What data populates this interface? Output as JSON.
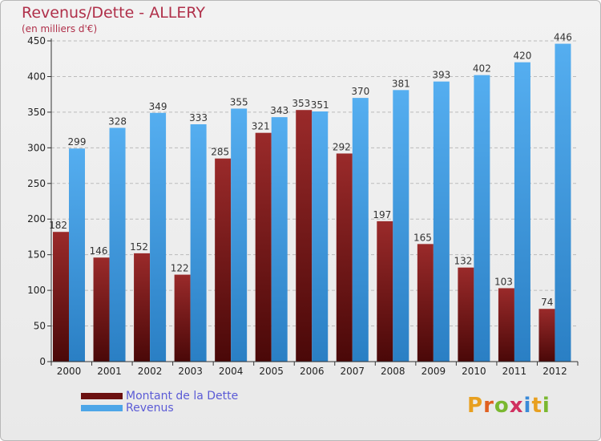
{
  "header": {
    "title": "Revenus/Dette - ALLERY",
    "subtitle": "(en milliers d'€)"
  },
  "colors": {
    "dette": "#7a1a1a",
    "revenus": "#4da6e8",
    "grid": "#bbbbbb",
    "axis": "#333333",
    "title": "#b0304a",
    "legend_text": "#5b5bd6"
  },
  "chart_data": {
    "type": "bar",
    "title": "Revenus/Dette - ALLERY",
    "ylabel": "(en milliers d'€)",
    "xlabel": "",
    "ylim": [
      0,
      450
    ],
    "yticks": [
      0,
      50,
      100,
      150,
      200,
      250,
      300,
      350,
      400,
      450
    ],
    "grid": true,
    "categories": [
      "2000",
      "2001",
      "2002",
      "2003",
      "2004",
      "2005",
      "2006",
      "2007",
      "2008",
      "2009",
      "2010",
      "2011",
      "2012"
    ],
    "series": [
      {
        "name": "Montant de la Dette",
        "color": "#7a1a1a",
        "values": [
          182,
          146,
          152,
          122,
          285,
          321,
          353,
          292,
          197,
          165,
          132,
          103,
          74
        ]
      },
      {
        "name": "Revenus",
        "color": "#4da6e8",
        "values": [
          299,
          328,
          349,
          333,
          355,
          343,
          351,
          370,
          381,
          393,
          402,
          420,
          446
        ]
      }
    ]
  },
  "legend": {
    "items": [
      {
        "label": "Montant de la Dette",
        "color": "#6b1010"
      },
      {
        "label": "Revenus",
        "color": "#4da6e8"
      }
    ]
  },
  "branding": {
    "logo_text": "Proxiti",
    "logo_colors": [
      "#e8a020",
      "#e06020",
      "#7ab830",
      "#d03060",
      "#3a8ad8",
      "#e8a020",
      "#7ab830"
    ]
  }
}
